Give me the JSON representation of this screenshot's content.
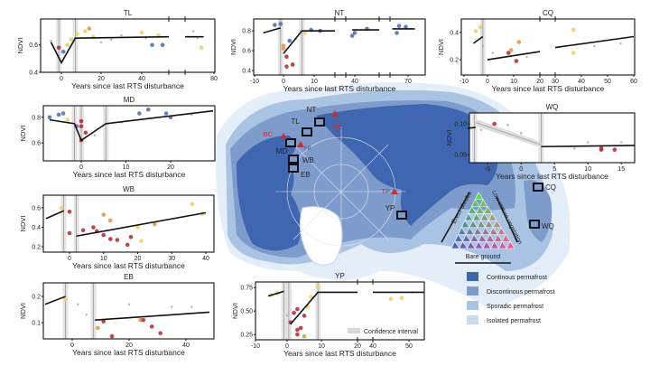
{
  "colors": {
    "continuous": "#3f66b0",
    "discontinuous": "#7e9ccb",
    "sporadic": "#a9c3e3",
    "isolated": "#c9dcef",
    "site_box": "#111111",
    "disturbance_site": "#c0303a",
    "yellow": "#e8d36a",
    "orange": "#e09a4a",
    "red": "#b8303a",
    "blue": "#5a6fb0",
    "gray": "#a8a8a8",
    "ci": "#d8d8d8"
  },
  "legend": {
    "permafrost": [
      "Continous permafrost",
      "Discontinous permafrost",
      "Sporadic permafrost",
      "Isolated permafrost"
    ],
    "confidence": "Confidence interval",
    "ternary": {
      "left": "Erect shrubs",
      "right": "Low-stature vegetation",
      "bottom": "Bare ground"
    }
  },
  "map": {
    "sites": [
      "NT",
      "TL",
      "MD",
      "WB",
      "EB",
      "YP",
      "CQ",
      "WQ"
    ],
    "disturbance_sites": [
      "CR",
      "BC",
      "HI",
      "TP"
    ]
  },
  "chart_data": [
    {
      "id": "TL",
      "type": "scatter",
      "title": "TL",
      "xlabel": "Years since last RTS disturbance",
      "ylabel": "NDVI",
      "xticks": [
        0,
        20,
        40,
        80
      ],
      "yticks": [
        "0.4",
        "0.6"
      ],
      "ytick_values": [
        0.4,
        0.6
      ],
      "ylim": [
        0.4,
        0.79
      ],
      "axis_breaks": [
        [
          53,
          66
        ]
      ],
      "breakpoints": [
        -1,
        7
      ],
      "segments": [
        [
          [
            -4,
            0.62
          ],
          [
            0,
            0.47
          ],
          [
            7,
            0.65
          ],
          [
            53,
            0.66
          ]
        ],
        [
          [
            66,
            0.66
          ],
          [
            75,
            0.66
          ]
        ]
      ],
      "points": [
        [
          -4,
          0.63,
          "gray"
        ],
        [
          -1,
          0.58,
          "red"
        ],
        [
          1,
          0.55,
          "blue"
        ],
        [
          3,
          0.6,
          "yellow"
        ],
        [
          5,
          0.64,
          "yellow"
        ],
        [
          8,
          0.68,
          "yellow"
        ],
        [
          12,
          0.7,
          "yellow"
        ],
        [
          14,
          0.72,
          "orange"
        ],
        [
          16,
          0.66,
          "yellow"
        ],
        [
          20,
          0.62,
          "gray"
        ],
        [
          25,
          0.64,
          "gray"
        ],
        [
          30,
          0.67,
          "gray"
        ],
        [
          40,
          0.69,
          "yellow"
        ],
        [
          42,
          0.65,
          "gray"
        ],
        [
          45,
          0.6,
          "blue"
        ],
        [
          48,
          0.67,
          "yellow"
        ],
        [
          50,
          0.6,
          "blue"
        ],
        [
          70,
          0.7,
          "gray"
        ],
        [
          72,
          0.65,
          "gray"
        ],
        [
          74,
          0.58,
          "yellow"
        ]
      ]
    },
    {
      "id": "MD",
      "type": "scatter",
      "title": "MD",
      "xlabel": "Years since last RTS disturbance",
      "ylabel": "NDVI",
      "xticks": [
        0,
        10,
        20
      ],
      "yticks": [
        "0.6",
        "0.8"
      ],
      "ytick_values": [
        0.6,
        0.8
      ],
      "ylim": [
        0.46,
        0.89
      ],
      "axis_breaks": [],
      "breakpoints": [
        -1.5,
        0,
        5.5
      ],
      "segments": [
        [
          [
            -7,
            0.78
          ],
          [
            -1.5,
            0.75
          ],
          [
            0,
            0.62
          ],
          [
            5.5,
            0.75
          ],
          [
            28,
            0.85
          ]
        ]
      ],
      "points": [
        [
          -7,
          0.8,
          "blue"
        ],
        [
          -5,
          0.82,
          "blue"
        ],
        [
          -4,
          0.83,
          "blue"
        ],
        [
          -3,
          0.78,
          "yellow"
        ],
        [
          -1,
          0.73,
          "blue"
        ],
        [
          0,
          0.77,
          "red"
        ],
        [
          0,
          0.73,
          "red"
        ],
        [
          0,
          0.62,
          "red"
        ],
        [
          1,
          0.68,
          "red"
        ],
        [
          3,
          0.66,
          "gray"
        ],
        [
          6,
          0.75,
          "gray"
        ],
        [
          9,
          0.76,
          "gray"
        ],
        [
          13,
          0.83,
          "blue"
        ],
        [
          15,
          0.86,
          "blue"
        ],
        [
          19,
          0.83,
          "blue"
        ],
        [
          20,
          0.8,
          "blue"
        ],
        [
          24,
          0.82,
          "gray"
        ]
      ]
    },
    {
      "id": "NT",
      "type": "scatter",
      "title": "NT",
      "xlabel": "Years since last RTS disturbance",
      "ylabel": "NDVI",
      "xticks": [
        -10,
        0,
        10,
        40,
        70
      ],
      "yticks": [
        "0.4",
        "0.6",
        "0.8"
      ],
      "ytick_values": [
        0.4,
        0.6,
        0.8
      ],
      "ylim": [
        0.355,
        0.92
      ],
      "axis_breaks": [
        [
          17,
          33
        ],
        [
          50,
          62
        ]
      ],
      "breakpoints": [
        -1,
        6
      ],
      "segments": [
        [
          [
            -7,
            0.78
          ],
          [
            -1,
            0.83
          ]
        ],
        [
          [
            0,
            0.57
          ],
          [
            6,
            0.8
          ],
          [
            17,
            0.8
          ]
        ],
        [
          [
            38,
            0.81
          ],
          [
            50,
            0.81
          ]
        ],
        [
          [
            63,
            0.82
          ],
          [
            72,
            0.82
          ]
        ]
      ],
      "points": [
        [
          -3,
          0.86,
          "blue"
        ],
        [
          -1,
          0.87,
          "blue"
        ],
        [
          0,
          0.65,
          "orange"
        ],
        [
          0,
          0.62,
          "orange"
        ],
        [
          1,
          0.54,
          "red"
        ],
        [
          1,
          0.44,
          "red"
        ],
        [
          3,
          0.46,
          "red"
        ],
        [
          2,
          0.7,
          "blue"
        ],
        [
          4,
          0.72,
          "gray"
        ],
        [
          7,
          0.78,
          "yellow"
        ],
        [
          9,
          0.81,
          "blue"
        ],
        [
          12,
          0.8,
          "blue"
        ],
        [
          38,
          0.75,
          "blue"
        ],
        [
          40,
          0.78,
          "blue"
        ],
        [
          45,
          0.82,
          "blue"
        ],
        [
          65,
          0.78,
          "blue"
        ],
        [
          66,
          0.85,
          "blue"
        ],
        [
          69,
          0.84,
          "blue"
        ]
      ]
    },
    {
      "id": "CQ",
      "type": "scatter",
      "title": "CQ",
      "xlabel": "Years since last RTS disturbance",
      "ylabel": "NDVI",
      "xticks": [
        -10,
        0,
        10,
        20,
        30,
        40,
        50,
        60
      ],
      "yticks": [
        "0.2",
        "0.4"
      ],
      "ytick_values": [
        0.2,
        0.4
      ],
      "ylim": [
        0.087,
        0.5
      ],
      "axis_breaks": [
        [
          20,
          30
        ]
      ],
      "breakpoints": [
        -2
      ],
      "segments": [
        [
          [
            -6,
            0.32
          ],
          [
            -2,
            0.37
          ]
        ],
        [
          [
            0,
            0.2
          ],
          [
            20,
            0.26
          ]
        ],
        [
          [
            30,
            0.29
          ],
          [
            60,
            0.37
          ]
        ]
      ],
      "points": [
        [
          -5,
          0.41,
          "yellow"
        ],
        [
          -3,
          0.44,
          "yellow"
        ],
        [
          -2,
          0.3,
          "gray"
        ],
        [
          2,
          0.25,
          "gray"
        ],
        [
          8,
          0.25,
          "red"
        ],
        [
          9,
          0.27,
          "orange"
        ],
        [
          11,
          0.19,
          "red"
        ],
        [
          12,
          0.33,
          "orange"
        ],
        [
          15,
          0.22,
          "gray"
        ],
        [
          37,
          0.42,
          "yellow"
        ],
        [
          37,
          0.25,
          "yellow"
        ],
        [
          45,
          0.3,
          "gray"
        ],
        [
          55,
          0.32,
          "gray"
        ]
      ]
    },
    {
      "id": "WQ",
      "type": "scatter",
      "title": "WQ",
      "xlabel": "Years since last RTS disturbance",
      "ylabel": "NDVI",
      "xticks": [
        -5,
        0,
        5,
        10,
        15
      ],
      "yticks": [
        "0.10",
        "0.05"
      ],
      "ytick_values": [
        0.1,
        0.05
      ],
      "ylim": [
        0.037,
        0.1176
      ],
      "axis_breaks": [],
      "breakpoints": [
        -7,
        3
      ],
      "segments": [
        [
          [
            -8,
            0.093
          ],
          [
            -6.8,
            0.094
          ]
        ],
        [
          [
            3,
            0.063
          ],
          [
            17,
            0.065
          ]
        ]
      ],
      "trend": [
        [
          -6.8,
          0.102
        ],
        [
          3,
          0.066
        ]
      ],
      "points": [
        [
          -4,
          0.1,
          "red"
        ],
        [
          -6,
          0.09,
          "gray"
        ],
        [
          -2,
          0.098,
          "gray"
        ],
        [
          0,
          0.085,
          "gray"
        ],
        [
          8,
          0.06,
          "gray"
        ],
        [
          10,
          0.07,
          "gray"
        ],
        [
          12,
          0.058,
          "red"
        ],
        [
          12,
          0.06,
          "red"
        ],
        [
          14,
          0.058,
          "red"
        ],
        [
          15,
          0.07,
          "gray"
        ]
      ]
    },
    {
      "id": "WB",
      "type": "scatter",
      "title": "WB",
      "xlabel": "Years since last RTS disturbance",
      "ylabel": "NDVI",
      "xticks": [
        0,
        10,
        20,
        30,
        40
      ],
      "yticks": [
        "0.2",
        "0.4",
        "0.6"
      ],
      "ytick_values": [
        0.2,
        0.4,
        0.6
      ],
      "ylim": [
        0.145,
        0.73
      ],
      "axis_breaks": [],
      "breakpoints": [
        -1.5,
        2
      ],
      "segments": [
        [
          [
            -6,
            0.49
          ],
          [
            -1.5,
            0.57
          ]
        ],
        [
          [
            2,
            0.31
          ],
          [
            40,
            0.55
          ]
        ]
      ],
      "points": [
        [
          -2,
          0.6,
          "yellow"
        ],
        [
          0,
          0.56,
          "red"
        ],
        [
          0,
          0.34,
          "red"
        ],
        [
          4,
          0.37,
          "red"
        ],
        [
          7,
          0.4,
          "red"
        ],
        [
          8,
          0.36,
          "red"
        ],
        [
          10,
          0.32,
          "red"
        ],
        [
          10,
          0.53,
          "orange"
        ],
        [
          12,
          0.28,
          "red"
        ],
        [
          12,
          0.47,
          "orange"
        ],
        [
          14,
          0.27,
          "red"
        ],
        [
          17,
          0.22,
          "red"
        ],
        [
          18,
          0.3,
          "red"
        ],
        [
          20,
          0.4,
          "yellow"
        ],
        [
          21,
          0.26,
          "yellow"
        ],
        [
          25,
          0.43,
          "orange"
        ],
        [
          36,
          0.64,
          "yellow"
        ],
        [
          39,
          0.54,
          "yellow"
        ]
      ]
    },
    {
      "id": "EB",
      "type": "scatter",
      "title": "EB",
      "xlabel": "Years since last RTS disturbance",
      "ylabel": "NDVI",
      "xticks": [
        0,
        20,
        40
      ],
      "yticks": [
        "0.1",
        "0.2"
      ],
      "ytick_values": [
        0.1,
        0.2
      ],
      "ylim": [
        0.038,
        0.252
      ],
      "axis_breaks": [],
      "breakpoints": [
        -2,
        7.5
      ],
      "segments": [
        [
          [
            -8,
            0.17
          ],
          [
            -2,
            0.2
          ]
        ],
        [
          [
            8,
            0.11
          ],
          [
            48,
            0.14
          ]
        ]
      ],
      "points": [
        [
          -2,
          0.19,
          "yellow"
        ],
        [
          2,
          0.17,
          "gray"
        ],
        [
          5,
          0.13,
          "gray"
        ],
        [
          9,
          0.08,
          "orange"
        ],
        [
          11,
          0.105,
          "red"
        ],
        [
          14,
          0.048,
          "red"
        ],
        [
          20,
          0.17,
          "gray"
        ],
        [
          24,
          0.11,
          "orange"
        ],
        [
          25,
          0.11,
          "red"
        ],
        [
          28,
          0.085,
          "red"
        ],
        [
          31,
          0.06,
          "red"
        ],
        [
          35,
          0.16,
          "gray"
        ],
        [
          42,
          0.16,
          "gray"
        ]
      ]
    },
    {
      "id": "YP",
      "type": "scatter",
      "title": "YP",
      "xlabel": "Years since last RTS disturbance",
      "ylabel": "NDVI",
      "xticks": [
        -10,
        0,
        10,
        20,
        40,
        50
      ],
      "yticks": [
        "0.25",
        "0.50",
        "0.75"
      ],
      "ytick_values": [
        0.25,
        0.5,
        0.75
      ],
      "ylim": [
        0.194,
        0.81
      ],
      "axis_breaks": [
        [
          20,
          40
        ]
      ],
      "breakpoints": [
        -1,
        0.5,
        9
      ],
      "segments": [
        [
          [
            -6,
            0.66
          ],
          [
            -1,
            0.71
          ]
        ],
        [
          [
            1,
            0.36
          ],
          [
            9,
            0.7
          ],
          [
            20,
            0.7
          ]
        ],
        [
          [
            40,
            0.7
          ],
          [
            55,
            0.7
          ]
        ]
      ],
      "points": [
        [
          -5,
          0.67,
          "yellow"
        ],
        [
          -3,
          0.69,
          "yellow"
        ],
        [
          0,
          0.45,
          "gray"
        ],
        [
          1,
          0.38,
          "red"
        ],
        [
          2,
          0.48,
          "red"
        ],
        [
          3,
          0.52,
          "red"
        ],
        [
          3,
          0.3,
          "red"
        ],
        [
          4,
          0.32,
          "red"
        ],
        [
          5,
          0.45,
          "red"
        ],
        [
          5,
          0.23,
          "orange"
        ],
        [
          3,
          0.25,
          "red"
        ],
        [
          6,
          0.55,
          "yellow"
        ],
        [
          7,
          0.65,
          "yellow"
        ],
        [
          9,
          0.76,
          "yellow"
        ],
        [
          45,
          0.63,
          "yellow"
        ],
        [
          48,
          0.64,
          "yellow"
        ],
        [
          51,
          0.7,
          "gray"
        ]
      ]
    }
  ]
}
